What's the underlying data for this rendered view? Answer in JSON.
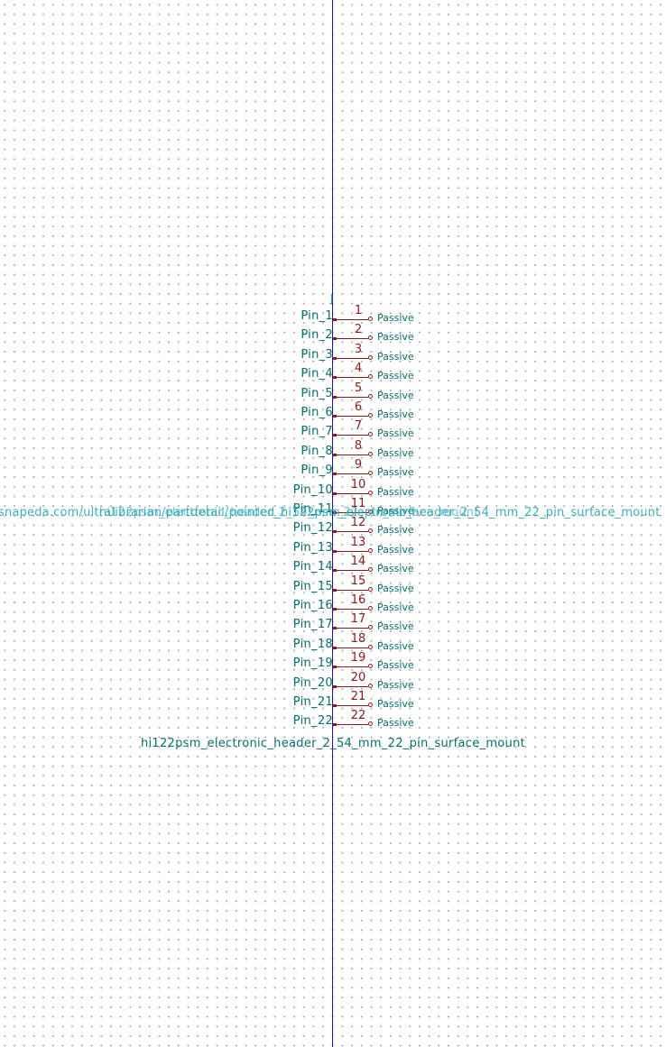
{
  "symbol": {
    "reference": "J",
    "value": "hi122psm_electronic_header_2_54_mm_22_pin_surface_mount",
    "overlapping_fields": [
      "snapeda.com/ultralibrarian/partdetail/pointed_hi122psm_electronic_header_2_54_mm_22_pin_surface_mount",
      "hi122psm_electronic_header_2_54_mm_22_pin_surface_mount"
    ],
    "pins": [
      {
        "name": "Pin_1",
        "number": "1",
        "type": "Passive"
      },
      {
        "name": "Pin_2",
        "number": "2",
        "type": "Passive"
      },
      {
        "name": "Pin_3",
        "number": "3",
        "type": "Passive"
      },
      {
        "name": "Pin_4",
        "number": "4",
        "type": "Passive"
      },
      {
        "name": "Pin_5",
        "number": "5",
        "type": "Passive"
      },
      {
        "name": "Pin_6",
        "number": "6",
        "type": "Passive"
      },
      {
        "name": "Pin_7",
        "number": "7",
        "type": "Passive"
      },
      {
        "name": "Pin_8",
        "number": "8",
        "type": "Passive"
      },
      {
        "name": "Pin_9",
        "number": "9",
        "type": "Passive"
      },
      {
        "name": "Pin_10",
        "number": "10",
        "type": "Passive"
      },
      {
        "name": "Pin_11",
        "number": "11",
        "type": "Passive"
      },
      {
        "name": "Pin_12",
        "number": "12",
        "type": "Passive"
      },
      {
        "name": "Pin_13",
        "number": "13",
        "type": "Passive"
      },
      {
        "name": "Pin_14",
        "number": "14",
        "type": "Passive"
      },
      {
        "name": "Pin_15",
        "number": "15",
        "type": "Passive"
      },
      {
        "name": "Pin_16",
        "number": "16",
        "type": "Passive"
      },
      {
        "name": "Pin_17",
        "number": "17",
        "type": "Passive"
      },
      {
        "name": "Pin_18",
        "number": "18",
        "type": "Passive"
      },
      {
        "name": "Pin_19",
        "number": "19",
        "type": "Passive"
      },
      {
        "name": "Pin_20",
        "number": "20",
        "type": "Passive"
      },
      {
        "name": "Pin_21",
        "number": "21",
        "type": "Passive"
      },
      {
        "name": "Pin_22",
        "number": "22",
        "type": "Passive"
      }
    ]
  },
  "colors": {
    "pin": "#8b1a1a",
    "text": "#0a6e6e",
    "axis": "#1c1c8c",
    "grid": "#a8a8a8"
  }
}
